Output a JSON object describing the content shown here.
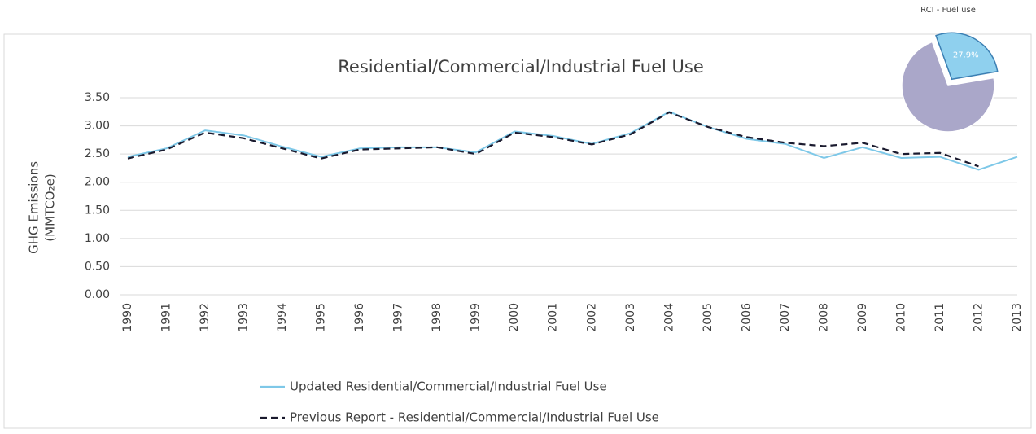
{
  "chart_data": [
    {
      "type": "line",
      "title": "Residential/Commercial/Industrial  Fuel Use",
      "ylabel": [
        "GHG Emissions",
        "(MMTCO₂e)"
      ],
      "categories": [
        "1990",
        "1991",
        "1992",
        "1993",
        "1994",
        "1995",
        "1996",
        "1997",
        "1998",
        "1999",
        "2000",
        "2001",
        "2002",
        "2003",
        "2004",
        "2005",
        "2006",
        "2007",
        "2008",
        "2009",
        "2010",
        "2011",
        "2012",
        "2013"
      ],
      "series": [
        {
          "name": "Updated Residential/Commercial/Industrial Fuel Use",
          "color": "#7ec8e8",
          "dash": false,
          "values": [
            2.45,
            2.6,
            2.92,
            2.83,
            2.63,
            2.45,
            2.6,
            2.62,
            2.62,
            2.53,
            2.9,
            2.82,
            2.68,
            2.87,
            3.25,
            2.98,
            2.77,
            2.68,
            2.43,
            2.62,
            2.43,
            2.45,
            2.22,
            2.45
          ]
        },
        {
          "name": "Previous Report - Residential/Commercial/Industrial Fuel Use",
          "color": "#1a1a2e",
          "dash": true,
          "values": [
            2.42,
            2.58,
            2.88,
            2.78,
            2.6,
            2.42,
            2.58,
            2.6,
            2.62,
            2.5,
            2.88,
            2.8,
            2.67,
            2.85,
            3.24,
            2.98,
            2.8,
            2.7,
            2.64,
            2.7,
            2.5,
            2.52,
            2.28,
            null
          ]
        }
      ],
      "ylim": [
        0,
        3.5
      ],
      "yticks": [
        {
          "value": 0,
          "label": "0.00"
        },
        {
          "value": 0.5,
          "label": "0.50"
        },
        {
          "value": 1,
          "label": "1.00"
        },
        {
          "value": 1.5,
          "label": "1.50"
        },
        {
          "value": 2,
          "label": "2.00"
        },
        {
          "value": 2.5,
          "label": "2.50"
        },
        {
          "value": 3,
          "label": "3.00"
        },
        {
          "value": 3.5,
          "label": "3.50"
        }
      ],
      "grid": true
    },
    {
      "type": "pie",
      "title": "RCI - Fuel use",
      "values": [
        27.9,
        72.1
      ],
      "value_labels": [
        "27.9%",
        null
      ],
      "colors": [
        "#8fd0ee",
        "#aaa7c9"
      ]
    }
  ]
}
